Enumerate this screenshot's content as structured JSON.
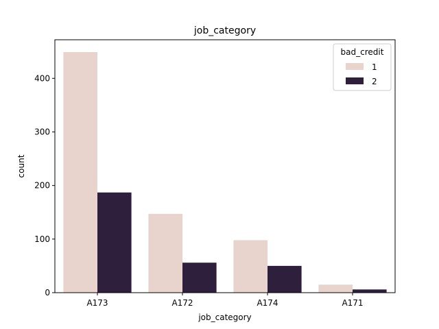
{
  "chart_data": {
    "type": "bar",
    "title": "job_category",
    "xlabel": "job_category",
    "ylabel": "count",
    "categories": [
      "A173",
      "A172",
      "A174",
      "A171"
    ],
    "series": [
      {
        "name": "1",
        "color": "#e9d3cd",
        "values": [
          449,
          147,
          98,
          15
        ]
      },
      {
        "name": "2",
        "color": "#2e1f3c",
        "values": [
          187,
          56,
          50,
          6
        ]
      }
    ],
    "ylim": [
      0,
      472
    ],
    "yticks": [
      0,
      100,
      200,
      300,
      400
    ],
    "grid": false,
    "legend": {
      "title": "bad_credit",
      "placement": "top-right"
    }
  }
}
